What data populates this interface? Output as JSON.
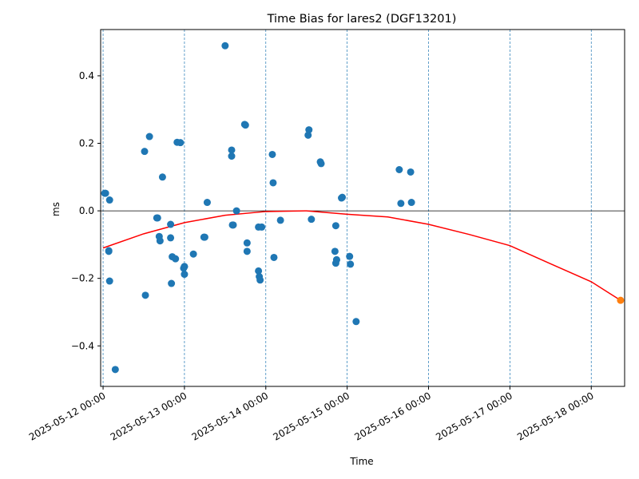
{
  "chart_data": {
    "type": "scatter",
    "title": "Time Bias for lares2 (DGF13201)",
    "xlabel": "Time",
    "ylabel": "ms",
    "x_tick_labels": [
      "2025-05-12 00:00",
      "2025-05-13 00:00",
      "2025-05-14 00:00",
      "2025-05-15 00:00",
      "2025-05-16 00:00",
      "2025-05-17 00:00",
      "2025-05-18 00:00"
    ],
    "x_ticks_days": [
      0,
      1,
      2,
      3,
      4,
      5,
      6
    ],
    "xlim_days": [
      -0.03,
      6.41
    ],
    "y_ticks": [
      -0.4,
      -0.2,
      0.0,
      0.2,
      0.4
    ],
    "y_tick_labels": [
      "−0.4",
      "−0.2",
      "0.0",
      "0.2",
      "0.4"
    ],
    "ylim": [
      -0.52,
      0.537
    ],
    "vertical_gridlines": "dashed at each day",
    "horizontal_reference_line": 0,
    "colors": {
      "points": "#1f77b4",
      "fit": "#ff0000",
      "prediction": "#ff7f0e",
      "grid": "#1f77b4"
    },
    "series": [
      {
        "kind": "points",
        "x_days": [
          0.02,
          0.03,
          0.07,
          0.07,
          0.08,
          0.08,
          0.15,
          0.51,
          0.52,
          0.57,
          0.66,
          0.67,
          0.69,
          0.7,
          0.73,
          0.83,
          0.83,
          0.84,
          0.85,
          0.89,
          0.91,
          0.95,
          0.99,
          1.0,
          1.0,
          1.0,
          1.11,
          1.24,
          1.25,
          1.28,
          1.5,
          1.58,
          1.58,
          1.59,
          1.6,
          1.64,
          1.74,
          1.75,
          1.77,
          1.77,
          1.91,
          1.91,
          1.92,
          1.93,
          1.95,
          2.08,
          2.09,
          2.1,
          2.18,
          2.52,
          2.53,
          2.56,
          2.67,
          2.68,
          2.85,
          2.86,
          2.86,
          2.87,
          2.87,
          2.93,
          2.94,
          3.03,
          3.04,
          3.11,
          3.64,
          3.66,
          3.78,
          3.79
        ],
        "y": [
          0.052,
          0.052,
          -0.12,
          -0.118,
          0.032,
          -0.208,
          -0.47,
          0.176,
          -0.25,
          0.22,
          -0.021,
          -0.021,
          -0.076,
          -0.089,
          0.1,
          -0.04,
          -0.08,
          -0.215,
          -0.136,
          -0.142,
          0.203,
          0.202,
          -0.17,
          -0.165,
          -0.165,
          -0.188,
          -0.128,
          -0.078,
          -0.078,
          0.025,
          0.489,
          0.18,
          0.162,
          -0.042,
          -0.042,
          0.0,
          0.256,
          0.254,
          -0.095,
          -0.12,
          -0.048,
          -0.178,
          -0.195,
          -0.205,
          -0.048,
          0.167,
          0.083,
          -0.138,
          -0.028,
          0.224,
          0.24,
          -0.025,
          0.145,
          0.14,
          -0.12,
          -0.044,
          -0.155,
          -0.145,
          -0.145,
          0.038,
          0.04,
          -0.135,
          -0.158,
          -0.328,
          0.122,
          0.022,
          0.115,
          0.025
        ]
      },
      {
        "kind": "fit",
        "description": "quadratic fit curve",
        "x_days": [
          0,
          0.5,
          1,
          1.5,
          2,
          2.5,
          3,
          3.5,
          4,
          4.5,
          5,
          5.5,
          6,
          6.36
        ],
        "y": [
          -0.11,
          -0.068,
          -0.035,
          -0.013,
          -0.002,
          0.0,
          -0.01,
          -0.018,
          -0.04,
          -0.07,
          -0.103,
          -0.157,
          -0.21,
          -0.265
        ]
      },
      {
        "kind": "prediction",
        "x_days": [
          6.36
        ],
        "y": [
          -0.265
        ]
      }
    ]
  }
}
